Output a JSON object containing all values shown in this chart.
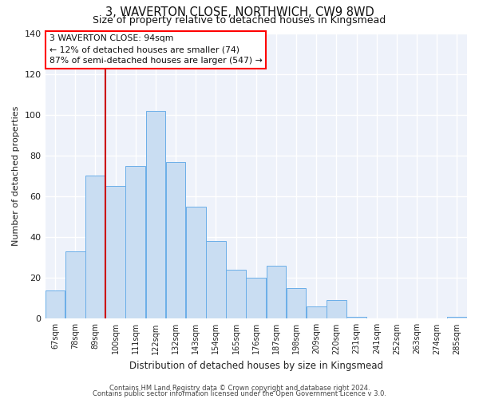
{
  "title": "3, WAVERTON CLOSE, NORTHWICH, CW9 8WD",
  "subtitle": "Size of property relative to detached houses in Kingsmead",
  "xlabel": "Distribution of detached houses by size in Kingsmead",
  "ylabel": "Number of detached properties",
  "bin_labels": [
    "67sqm",
    "78sqm",
    "89sqm",
    "100sqm",
    "111sqm",
    "122sqm",
    "132sqm",
    "143sqm",
    "154sqm",
    "165sqm",
    "176sqm",
    "187sqm",
    "198sqm",
    "209sqm",
    "220sqm",
    "231sqm",
    "241sqm",
    "252sqm",
    "263sqm",
    "274sqm",
    "285sqm"
  ],
  "bar_values": [
    14,
    33,
    70,
    65,
    75,
    102,
    77,
    55,
    38,
    24,
    20,
    26,
    15,
    6,
    9,
    1,
    0,
    0,
    0,
    0,
    1
  ],
  "bar_color": "#c9ddf2",
  "bar_edge_color": "#6aaee8",
  "ylim": [
    0,
    140
  ],
  "yticks": [
    0,
    20,
    40,
    60,
    80,
    100,
    120,
    140
  ],
  "annotation_title": "3 WAVERTON CLOSE: 94sqm",
  "annotation_line1": "← 12% of detached houses are smaller (74)",
  "annotation_line2": "87% of semi-detached houses are larger (547) →",
  "footer_line1": "Contains HM Land Registry data © Crown copyright and database right 2024.",
  "footer_line2": "Contains public sector information licensed under the Open Government Licence v 3.0.",
  "bg_color": "#ffffff",
  "plot_bg_color": "#eef2fa",
  "grid_color": "#ffffff",
  "red_line_color": "#cc0000"
}
